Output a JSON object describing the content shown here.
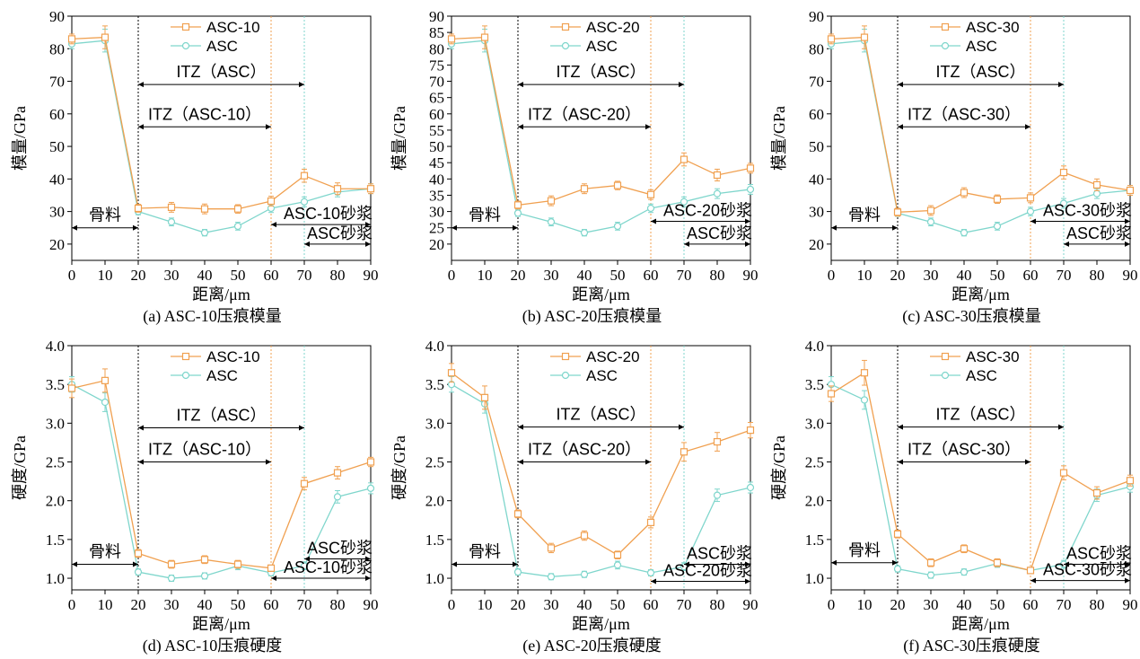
{
  "colors": {
    "modified": "#f0a050",
    "plain": "#7fd6cc",
    "zone_line": "#000000"
  },
  "axis_labels": {
    "x": "距离/μm",
    "y_modulus": "模量/GPa",
    "y_hardness": "硬度/GPa"
  },
  "zone_labels": {
    "aggregate": "骨料",
    "asc_mortar": "ASC砂浆"
  },
  "chart_data": [
    {
      "type": "line",
      "caption": "(a) ASC-10压痕模量",
      "xlabel": "距离/μm",
      "ylabel": "模量/GPa",
      "xlim": [
        0,
        90
      ],
      "ylim": [
        15,
        90
      ],
      "xticks": [
        "0",
        "10",
        "20",
        "30",
        "40",
        "50",
        "60",
        "70",
        "80",
        "90"
      ],
      "yticks": [
        "20",
        "30",
        "40",
        "50",
        "60",
        "70",
        "80",
        "90"
      ],
      "x": [
        0,
        10,
        20,
        30,
        40,
        50,
        60,
        70,
        80,
        90
      ],
      "series": [
        {
          "name": "ASC-10",
          "values": [
            83,
            83.5,
            31,
            31.3,
            30.8,
            30.8,
            33.2,
            41,
            37,
            37
          ],
          "errors": [
            1.5,
            3.5,
            1.2,
            1.5,
            1.5,
            1.3,
            1.5,
            2,
            1.8,
            1.5
          ]
        },
        {
          "name": "ASC",
          "values": [
            81.5,
            82.5,
            30,
            26.8,
            23.5,
            25.5,
            31,
            33,
            36,
            37
          ],
          "errors": [
            1.5,
            3.5,
            1,
            1.2,
            1,
            1.2,
            1.3,
            1.5,
            1.5,
            1.5
          ]
        }
      ],
      "itz_asc": {
        "label": "ITZ（ASC）",
        "from": 20,
        "to": 70
      },
      "itz_mod": {
        "label": "ITZ（ASC-10）",
        "from": 20,
        "to": 60
      },
      "mortar_mod_label": "ASC-10砂浆",
      "aggregate_arrow_y": 25,
      "mortar_mod_arrow_y": 26,
      "mortar_asc_arrow_y": 20,
      "itz_asc_arrow_y": 69,
      "itz_mod_arrow_y": 56,
      "split_orange": 60,
      "split_cyan": 70
    },
    {
      "type": "line",
      "caption": "(b) ASC-20压痕模量",
      "xlabel": "距离/μm",
      "ylabel": "模量/GPa",
      "xlim": [
        0,
        90
      ],
      "ylim": [
        15,
        90
      ],
      "xticks": [
        "0",
        "10",
        "20",
        "30",
        "40",
        "50",
        "60",
        "70",
        "80",
        "90"
      ],
      "yticks": [
        "20",
        "25",
        "30",
        "35",
        "40",
        "45",
        "50",
        "55",
        "60",
        "65",
        "70",
        "75",
        "80",
        "85",
        "90"
      ],
      "x": [
        0,
        10,
        20,
        30,
        40,
        50,
        60,
        70,
        80,
        90
      ],
      "series": [
        {
          "name": "ASC-20",
          "values": [
            83,
            83.5,
            32,
            33.3,
            37,
            38,
            35.2,
            46,
            41.2,
            43.3
          ],
          "errors": [
            1.5,
            3.5,
            1.2,
            1.5,
            1.5,
            1.3,
            1.5,
            2,
            1.8,
            1.5
          ]
        },
        {
          "name": "ASC",
          "values": [
            81.5,
            82.5,
            29.5,
            26.8,
            23.5,
            25.5,
            31,
            33,
            35.5,
            36.8
          ],
          "errors": [
            1.5,
            3.5,
            1,
            1.2,
            1,
            1.2,
            1.3,
            1.5,
            1.5,
            1.5
          ]
        }
      ],
      "itz_asc": {
        "label": "ITZ（ASC）",
        "from": 20,
        "to": 70
      },
      "itz_mod": {
        "label": "ITZ（ASC-20）",
        "from": 20,
        "to": 60
      },
      "mortar_mod_label": "ASC-20砂浆",
      "aggregate_arrow_y": 25,
      "mortar_mod_arrow_y": 27,
      "mortar_asc_arrow_y": 20,
      "itz_asc_arrow_y": 69,
      "itz_mod_arrow_y": 56,
      "split_orange": 60,
      "split_cyan": 70
    },
    {
      "type": "line",
      "caption": "(c) ASC-30压痕模量",
      "xlabel": "距离/μm",
      "ylabel": "模量/GPa",
      "xlim": [
        0,
        90
      ],
      "ylim": [
        15,
        90
      ],
      "xticks": [
        "0",
        "10",
        "20",
        "30",
        "40",
        "50",
        "60",
        "70",
        "80",
        "90"
      ],
      "yticks": [
        "20",
        "30",
        "40",
        "50",
        "60",
        "70",
        "80",
        "90"
      ],
      "x": [
        0,
        10,
        20,
        30,
        40,
        50,
        60,
        70,
        80,
        90
      ],
      "series": [
        {
          "name": "ASC-30",
          "values": [
            83,
            83.5,
            29.8,
            30.3,
            35.8,
            33.8,
            34.2,
            42,
            38.2,
            36.5
          ],
          "errors": [
            1.5,
            3.5,
            1.2,
            1.5,
            1.5,
            1.3,
            1.5,
            2,
            1.8,
            1.5
          ]
        },
        {
          "name": "ASC",
          "values": [
            81.5,
            82.5,
            29.5,
            26.8,
            23.5,
            25.5,
            30,
            32.5,
            35.5,
            36.5
          ],
          "errors": [
            1.5,
            3.5,
            1,
            1.2,
            1,
            1.2,
            1.3,
            1.5,
            1.5,
            1.5
          ]
        }
      ],
      "itz_asc": {
        "label": "ITZ（ASC）",
        "from": 20,
        "to": 70
      },
      "itz_mod": {
        "label": "ITZ（ASC-30）",
        "from": 20,
        "to": 60
      },
      "mortar_mod_label": "ASC-30砂浆",
      "aggregate_arrow_y": 25,
      "mortar_mod_arrow_y": 27,
      "mortar_asc_arrow_y": 20,
      "itz_asc_arrow_y": 69,
      "itz_mod_arrow_y": 56,
      "split_orange": 60,
      "split_cyan": 70
    },
    {
      "type": "line",
      "caption": "(d) ASC-10压痕硬度",
      "xlabel": "距离/μm",
      "ylabel": "硬度/GPa",
      "xlim": [
        0,
        90
      ],
      "ylim": [
        0.85,
        4.0
      ],
      "xticks": [
        "0",
        "10",
        "20",
        "30",
        "40",
        "50",
        "60",
        "70",
        "80",
        "90"
      ],
      "yticks": [
        "1.0",
        "1.5",
        "2.0",
        "2.5",
        "3.0",
        "3.5",
        "4.0"
      ],
      "x": [
        0,
        10,
        20,
        30,
        40,
        50,
        60,
        70,
        80,
        90
      ],
      "series": [
        {
          "name": "ASC-10",
          "values": [
            3.45,
            3.55,
            1.32,
            1.18,
            1.24,
            1.18,
            1.13,
            2.22,
            2.36,
            2.5
          ],
          "errors": [
            0.12,
            0.15,
            0.05,
            0.05,
            0.05,
            0.05,
            0.04,
            0.08,
            0.08,
            0.06
          ]
        },
        {
          "name": "ASC",
          "values": [
            3.5,
            3.27,
            1.08,
            1.0,
            1.03,
            1.16,
            1.07,
            1.16,
            2.05,
            2.16
          ],
          "errors": [
            0.1,
            0.12,
            0.04,
            0.04,
            0.04,
            0.05,
            0.04,
            0.05,
            0.08,
            0.07
          ]
        }
      ],
      "itz_asc": {
        "label": "ITZ（ASC）",
        "from": 20,
        "to": 70
      },
      "itz_mod": {
        "label": "ITZ（ASC-10）",
        "from": 20,
        "to": 60
      },
      "mortar_mod_label": "ASC-10砂浆",
      "aggregate_arrow_y": 1.18,
      "mortar_mod_arrow_y": 1.0,
      "mortar_asc_arrow_y": 1.25,
      "itz_asc_arrow_y": 2.94,
      "itz_mod_arrow_y": 2.5,
      "split_orange": 60,
      "split_cyan": 70
    },
    {
      "type": "line",
      "caption": "(e) ASC-20压痕硬度",
      "xlabel": "距离/μm",
      "ylabel": "硬度/GPa",
      "xlim": [
        0,
        90
      ],
      "ylim": [
        0.85,
        4.0
      ],
      "xticks": [
        "0",
        "10",
        "20",
        "30",
        "40",
        "50",
        "60",
        "70",
        "80",
        "90"
      ],
      "yticks": [
        "1.0",
        "1.5",
        "2.0",
        "2.5",
        "3.0",
        "3.5",
        "4.0"
      ],
      "x": [
        0,
        10,
        20,
        30,
        40,
        50,
        60,
        70,
        80,
        90
      ],
      "series": [
        {
          "name": "ASC-20",
          "values": [
            3.65,
            3.33,
            1.83,
            1.39,
            1.55,
            1.3,
            1.72,
            2.63,
            2.76,
            2.91
          ],
          "errors": [
            0.12,
            0.15,
            0.05,
            0.06,
            0.06,
            0.05,
            0.07,
            0.12,
            0.12,
            0.1
          ]
        },
        {
          "name": "ASC",
          "values": [
            3.5,
            3.25,
            1.08,
            1.02,
            1.05,
            1.17,
            1.07,
            1.15,
            2.07,
            2.17
          ],
          "errors": [
            0.1,
            0.12,
            0.04,
            0.04,
            0.04,
            0.05,
            0.04,
            0.05,
            0.08,
            0.07
          ]
        }
      ],
      "itz_asc": {
        "label": "ITZ（ASC）",
        "from": 20,
        "to": 70
      },
      "itz_mod": {
        "label": "ITZ（ASC-20）",
        "from": 20,
        "to": 60
      },
      "mortar_mod_label": "ASC-20砂浆",
      "aggregate_arrow_y": 1.18,
      "mortar_mod_arrow_y": 0.96,
      "mortar_asc_arrow_y": 1.18,
      "itz_asc_arrow_y": 2.95,
      "itz_mod_arrow_y": 2.5,
      "split_orange": 60,
      "split_cyan": 70
    },
    {
      "type": "line",
      "caption": "(f) ASC-30压痕硬度",
      "xlabel": "距离/μm",
      "ylabel": "硬度/GPa",
      "xlim": [
        0,
        90
      ],
      "ylim": [
        0.85,
        4.0
      ],
      "xticks": [
        "0",
        "10",
        "20",
        "30",
        "40",
        "50",
        "60",
        "70",
        "80",
        "90"
      ],
      "yticks": [
        "1.0",
        "1.5",
        "2.0",
        "2.5",
        "3.0",
        "3.5",
        "4.0"
      ],
      "x": [
        0,
        10,
        20,
        30,
        40,
        50,
        60,
        70,
        80,
        90
      ],
      "series": [
        {
          "name": "ASC-30",
          "values": [
            3.38,
            3.65,
            1.57,
            1.2,
            1.38,
            1.2,
            1.1,
            2.36,
            2.1,
            2.26
          ],
          "errors": [
            0.1,
            0.16,
            0.05,
            0.05,
            0.05,
            0.05,
            0.04,
            0.09,
            0.08,
            0.07
          ]
        },
        {
          "name": "ASC",
          "values": [
            3.5,
            3.3,
            1.12,
            1.04,
            1.08,
            1.19,
            1.1,
            1.18,
            2.07,
            2.18
          ],
          "errors": [
            0.1,
            0.12,
            0.04,
            0.04,
            0.04,
            0.05,
            0.04,
            0.05,
            0.08,
            0.07
          ]
        }
      ],
      "itz_asc": {
        "label": "ITZ（ASC）",
        "from": 20,
        "to": 70
      },
      "itz_mod": {
        "label": "ITZ（ASC-30）",
        "from": 20,
        "to": 60
      },
      "mortar_mod_label": "ASC-30砂浆",
      "aggregate_arrow_y": 1.2,
      "mortar_mod_arrow_y": 0.97,
      "mortar_asc_arrow_y": 1.18,
      "itz_asc_arrow_y": 2.95,
      "itz_mod_arrow_y": 2.5,
      "split_orange": 60,
      "split_cyan": 70
    }
  ]
}
